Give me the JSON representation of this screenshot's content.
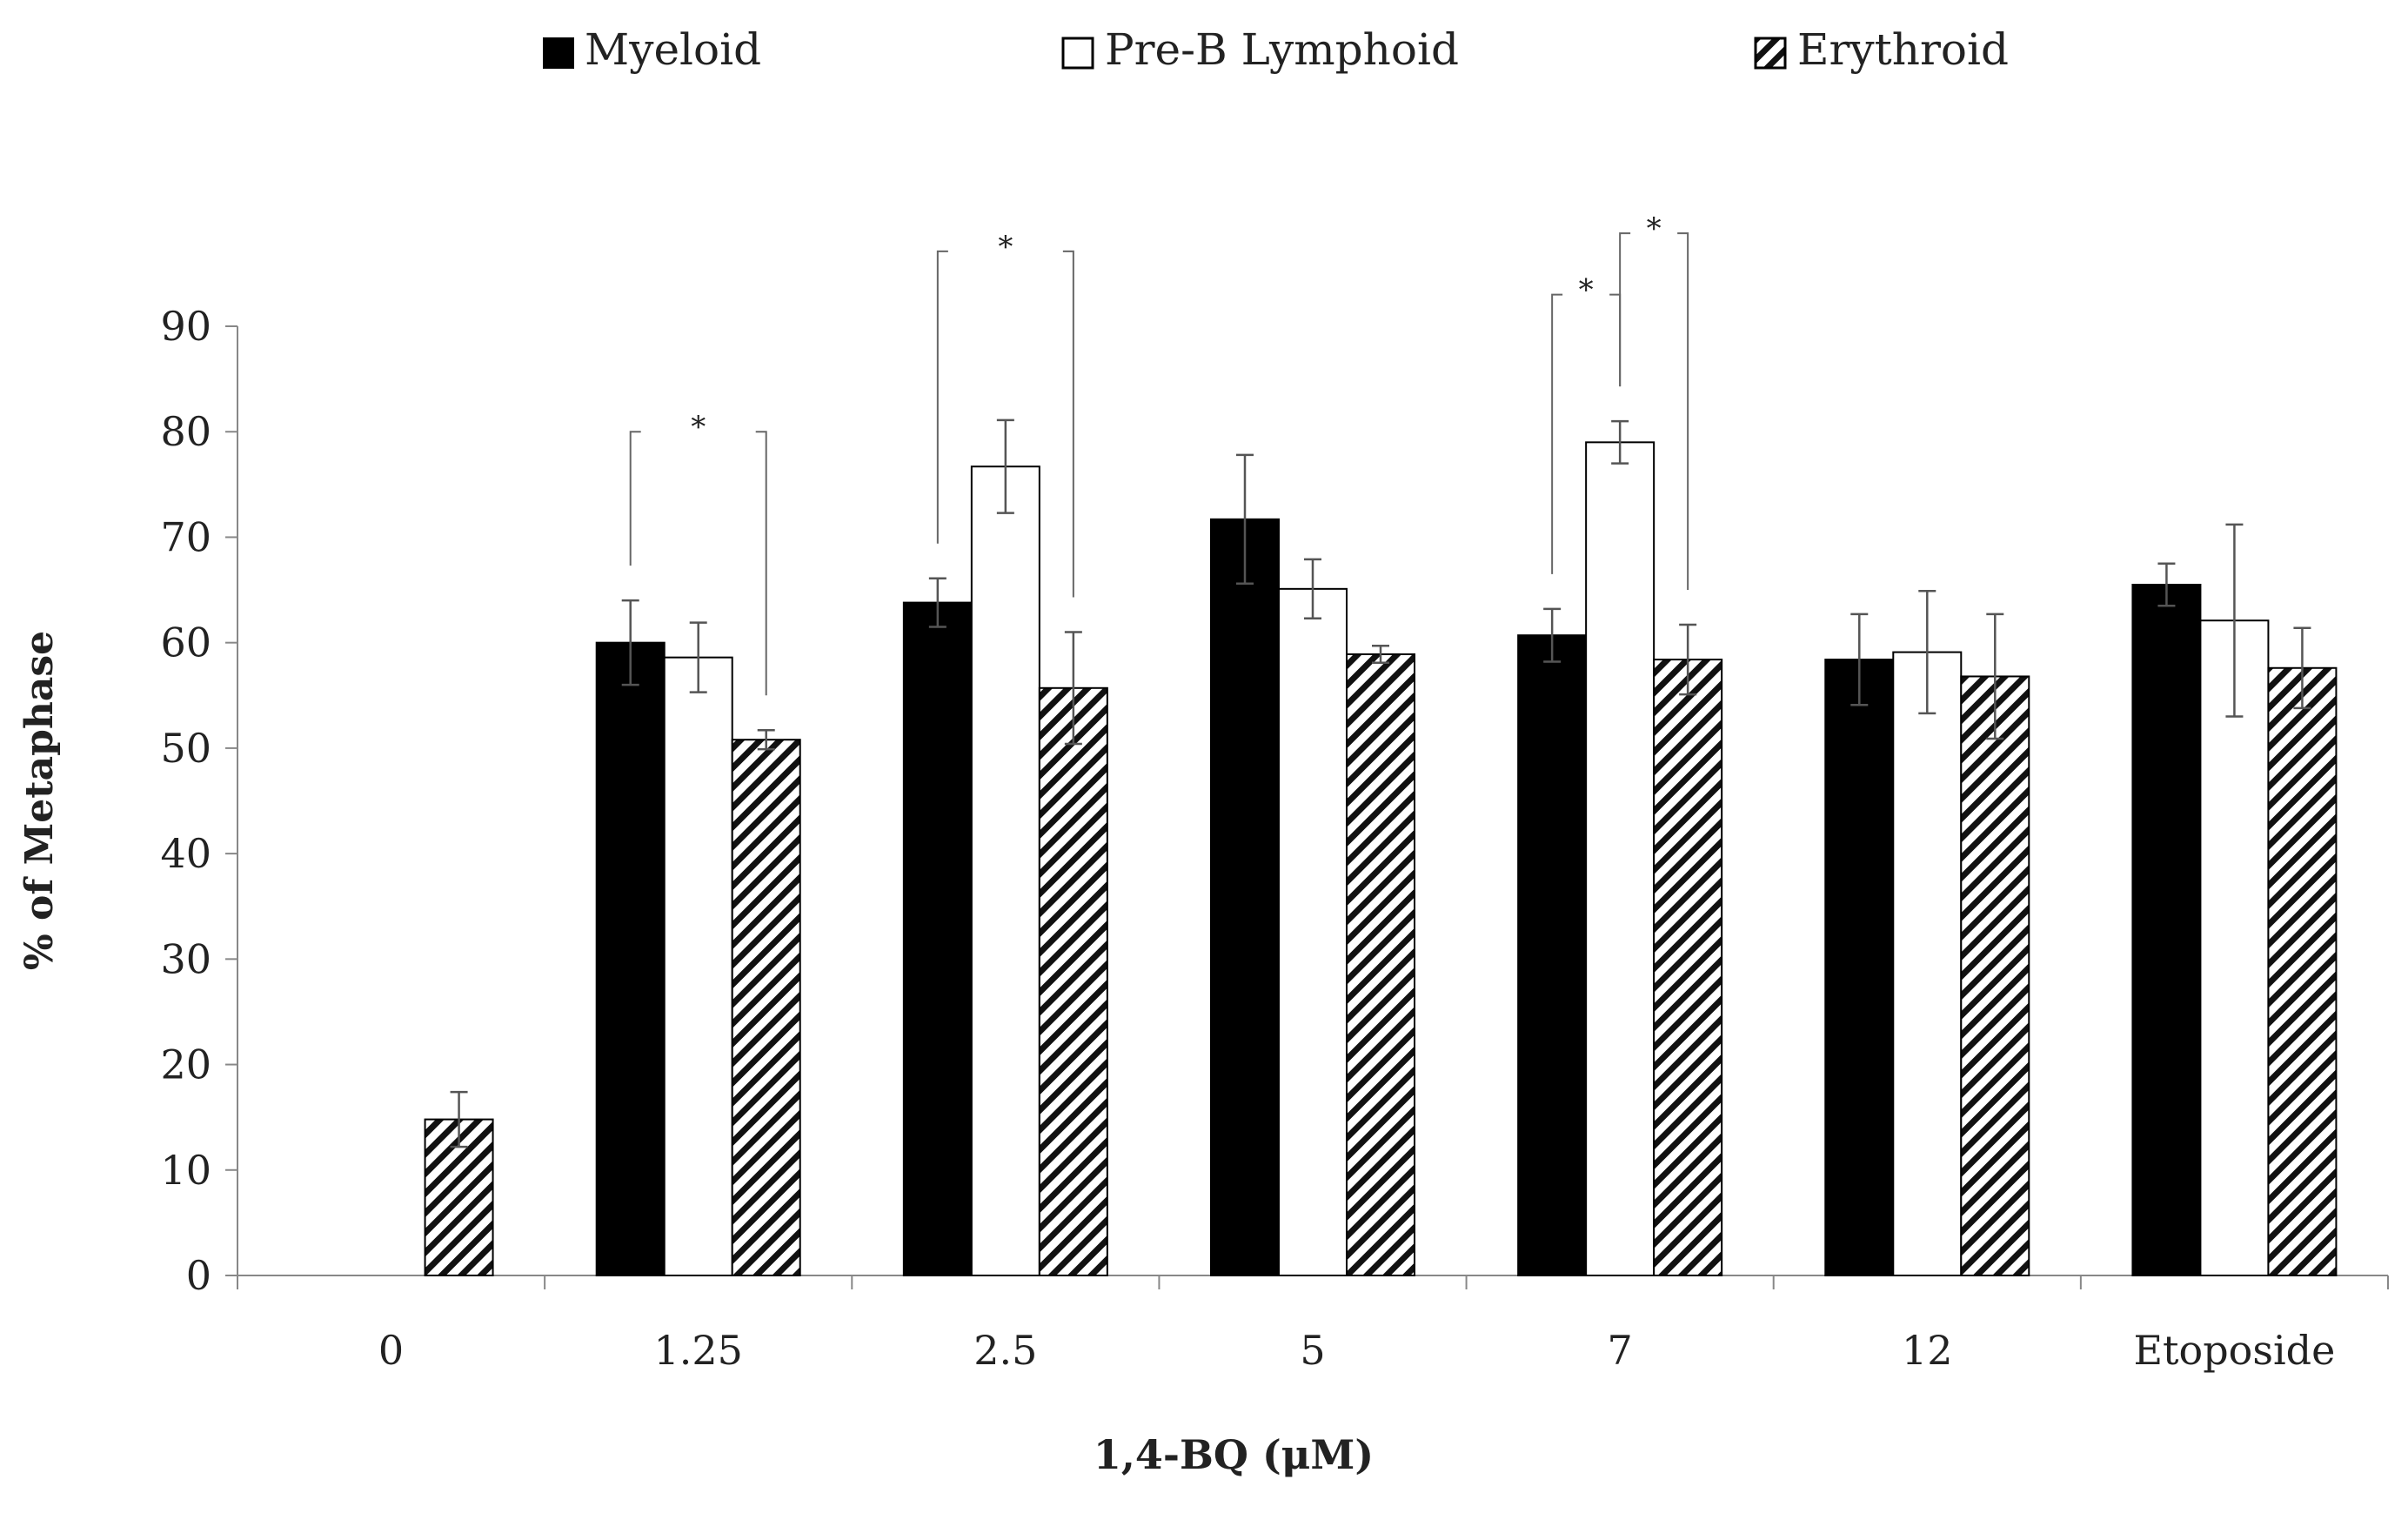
{
  "chart_data": {
    "type": "bar",
    "title": "",
    "xlabel": "1,4-BQ (μM)",
    "ylabel": "% of Metaphase",
    "ylim": [
      0,
      90
    ],
    "yticks": [
      0,
      10,
      20,
      30,
      40,
      50,
      60,
      70,
      80,
      90
    ],
    "categories": [
      "0",
      "1.25",
      "2.5",
      "5",
      "7",
      "12",
      "Etoposide"
    ],
    "legend_position": "top",
    "series": [
      {
        "name": "Myeloid",
        "fill": "solid",
        "color": "#000000",
        "values": [
          null,
          60,
          63.8,
          71.7,
          60.7,
          58.4,
          65.5
        ],
        "errors": [
          null,
          4.0,
          2.3,
          6.1,
          2.5,
          4.3,
          2.0
        ]
      },
      {
        "name": "Pre-B Lymphoid",
        "fill": "empty",
        "color": "#ffffff",
        "values": [
          null,
          58.6,
          76.7,
          65.1,
          79,
          59.1,
          62.1
        ],
        "errors": [
          null,
          3.3,
          4.4,
          2.8,
          2.0,
          5.8,
          9.1
        ]
      },
      {
        "name": "Erythroid",
        "fill": "hatched",
        "color": "#000000",
        "values": [
          14.8,
          50.8,
          55.7,
          58.9,
          58.4,
          56.8,
          57.6
        ],
        "errors": [
          2.6,
          0.9,
          5.3,
          0.8,
          3.3,
          5.9,
          3.8
        ]
      }
    ],
    "significance": [
      {
        "category": "1.25",
        "series_pair": [
          "Myeloid",
          "Erythroid"
        ],
        "label": "*"
      },
      {
        "category": "2.5",
        "series_pair": [
          "Myeloid",
          "Erythroid"
        ],
        "label": "*"
      },
      {
        "category": "7",
        "series_pair": [
          "Myeloid",
          "Pre-B Lymphoid"
        ],
        "label": "*"
      },
      {
        "category": "7",
        "series_pair": [
          "Pre-B Lymphoid",
          "Erythroid"
        ],
        "label": "*"
      }
    ]
  }
}
